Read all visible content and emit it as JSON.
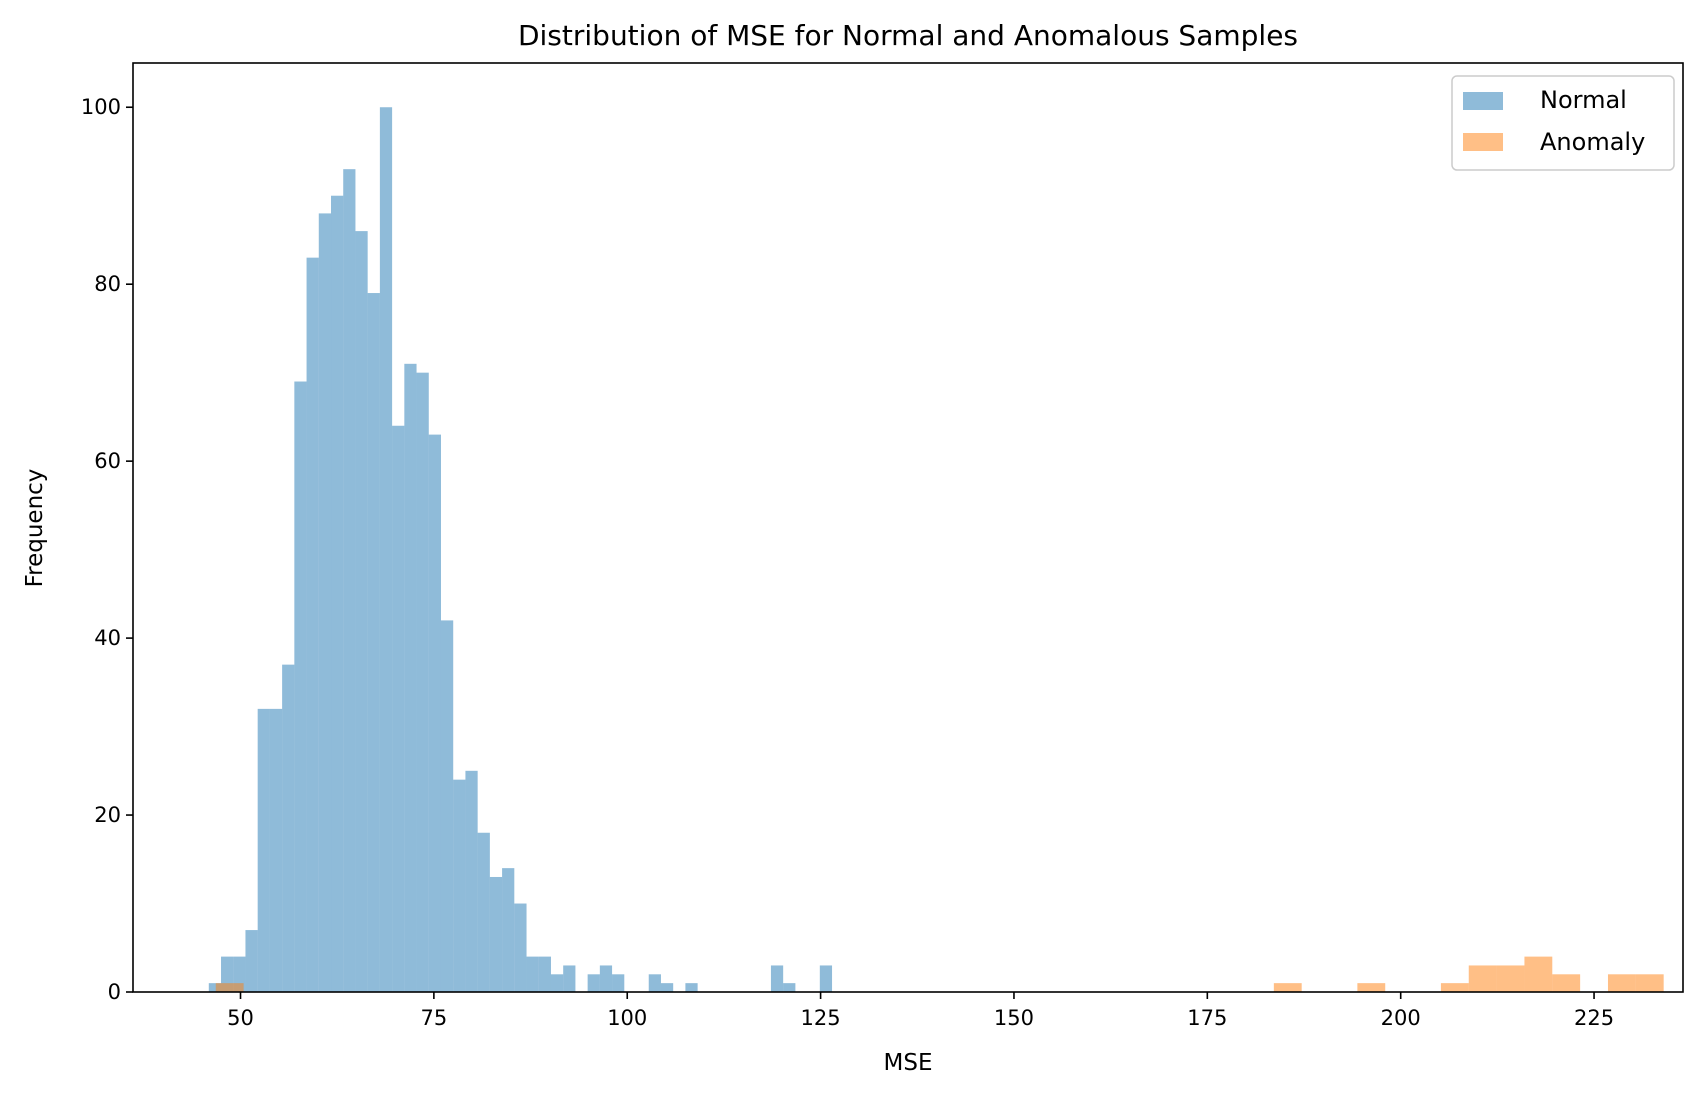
{
  "chart_data": {
    "type": "histogram",
    "title": "Distribution of MSE for Normal and Anomalous Samples",
    "xlabel": "MSE",
    "ylabel": "Frequency",
    "xlim": [
      36.1,
      236.5
    ],
    "ylim": [
      0,
      105
    ],
    "xticks": [
      50,
      75,
      100,
      125,
      150,
      175,
      200,
      225
    ],
    "yticks": [
      0,
      20,
      40,
      60,
      80,
      100
    ],
    "legend_position": "upper right",
    "grid": false,
    "series": [
      {
        "name": "Normal",
        "color": "#1f77b4",
        "opacity": 0.5,
        "bin_start": 45.9,
        "bin_width": 1.58,
        "counts": [
          1,
          4,
          4,
          7,
          32,
          32,
          37,
          69,
          83,
          88,
          90,
          93,
          86,
          79,
          100,
          64,
          71,
          70,
          63,
          42,
          24,
          25,
          18,
          13,
          14,
          10,
          4,
          4,
          2,
          3,
          0,
          2,
          3,
          2,
          0,
          0,
          2,
          1,
          0,
          1,
          0,
          0,
          0,
          0,
          0,
          0,
          3,
          1,
          0,
          0,
          3
        ]
      },
      {
        "name": "Anomaly",
        "color": "#ff7f0e",
        "opacity": 0.5,
        "bin_start": 46.8,
        "bin_width": 3.6,
        "counts": [
          1,
          0,
          0,
          0,
          0,
          0,
          0,
          0,
          0,
          0,
          0,
          0,
          0,
          0,
          0,
          0,
          0,
          0,
          0,
          0,
          0,
          0,
          0,
          0,
          0,
          0,
          0,
          0,
          0,
          0,
          0,
          0,
          0,
          0,
          0,
          0,
          0,
          0,
          1,
          0,
          0,
          1,
          0,
          0,
          1,
          3,
          3,
          4,
          2,
          0,
          2,
          2
        ]
      }
    ]
  }
}
